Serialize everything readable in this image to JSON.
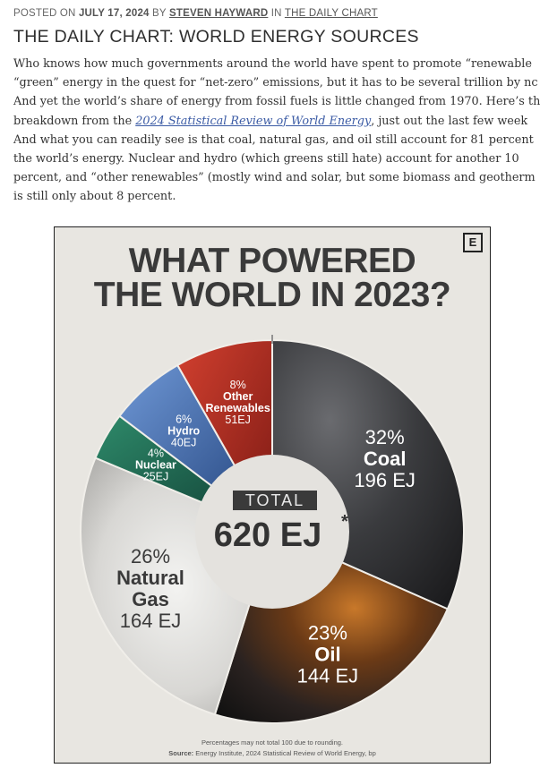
{
  "post": {
    "posted_on_label": "POSTED ON",
    "date": "JULY 17, 2024",
    "by_label": "BY",
    "author": "STEVEN HAYWARD",
    "in_label": "IN",
    "category": "THE DAILY CHART",
    "title": "THE DAILY CHART: WORLD ENERGY SOURCES",
    "body_lines": [
      "Who knows how much governments around the world have spent to promote “renewable",
      "“green” energy in the quest for “net-zero” emissions, but it has to be several trillion by nc",
      "And yet the world’s share of energy from fossil fuels is little changed from 1970. Here’s th",
      "breakdown from the",
      "2024 Statistical Review of World Energy",
      ", just out the last few week",
      "And what you can readily see is that coal, natural gas, and oil still account for 81 percent",
      "the world’s energy. Nuclear and hydro (which greens still hate) account for another 10",
      "percent, and “other renewables” (mostly wind and solar, but some biomass and geotherm",
      "is still only about 8 percent."
    ]
  },
  "infographic": {
    "logo": "E",
    "headline_line1": "WHAT POWERED",
    "headline_line2": "THE WORLD IN 2023?",
    "total_label": "TOTAL",
    "total_value": "620 EJ",
    "total_mark": "*",
    "footnote": "Percentages may not total 100 due to rounding.",
    "source_label": "Source:",
    "source_text": "Energy Institute, 2024 Statistical Review of World Energy, bp"
  },
  "chart_data": {
    "type": "pie",
    "title": "WHAT POWERED THE WORLD IN 2023?",
    "total": 620,
    "unit": "EJ",
    "slices": [
      {
        "name": "Coal",
        "percent": 32,
        "value": 196,
        "value_label": "196 EJ",
        "color": "#3c3d40"
      },
      {
        "name": "Oil",
        "percent": 23,
        "value": 144,
        "value_label": "144 EJ",
        "color": "#2e2520"
      },
      {
        "name": "Natural Gas",
        "percent": 26,
        "value": 164,
        "value_label": "164 EJ",
        "color": "#d9d8d5"
      },
      {
        "name": "Nuclear",
        "percent": 4,
        "value": 25,
        "value_label": "25EJ",
        "color": "#1f5b4c"
      },
      {
        "name": "Hydro",
        "percent": 6,
        "value": 40,
        "value_label": "40EJ",
        "color": "#3a64a8"
      },
      {
        "name": "Other Renewables",
        "percent": 8,
        "value": 51,
        "value_label": "51EJ",
        "color": "#b02a22"
      }
    ]
  }
}
